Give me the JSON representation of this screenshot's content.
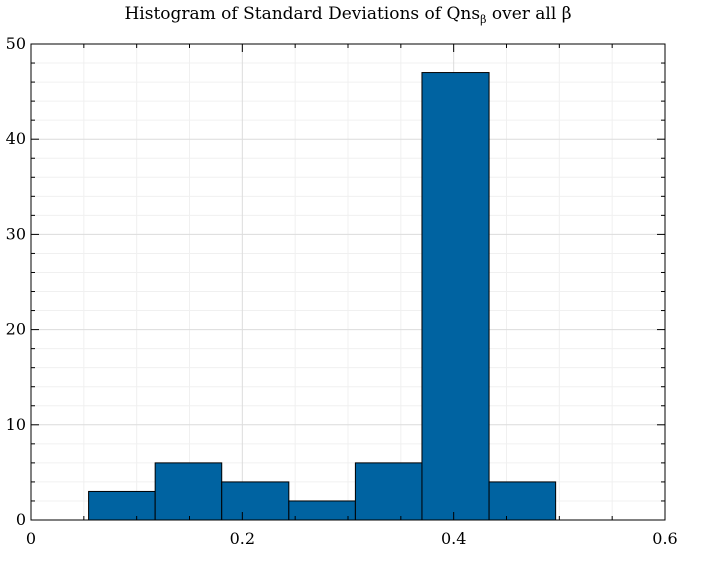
{
  "chart_data": {
    "type": "bar",
    "title": {
      "prefix": "Histogram of Standard Deviations of Qns",
      "subscript": "β",
      "suffix": " over all β"
    },
    "xlabel": "",
    "ylabel": "",
    "xlim": [
      0,
      0.6
    ],
    "ylim": [
      0,
      50
    ],
    "x_ticks": [
      0,
      0.2,
      0.4,
      0.6
    ],
    "x_tick_labels": [
      "0",
      "0.2",
      "0.4",
      "0.6"
    ],
    "y_ticks": [
      0,
      10,
      20,
      30,
      40,
      50
    ],
    "y_tick_labels": [
      "0",
      "10",
      "20",
      "30",
      "40",
      "50"
    ],
    "bins": [
      {
        "start": 0.0545,
        "end": 0.1175,
        "count": 3
      },
      {
        "start": 0.1175,
        "end": 0.1805,
        "count": 6
      },
      {
        "start": 0.1805,
        "end": 0.244,
        "count": 4
      },
      {
        "start": 0.244,
        "end": 0.307,
        "count": 2
      },
      {
        "start": 0.307,
        "end": 0.37,
        "count": 6
      },
      {
        "start": 0.37,
        "end": 0.4335,
        "count": 47
      },
      {
        "start": 0.4335,
        "end": 0.4965,
        "count": 4
      }
    ],
    "grid": true,
    "minor_grid": true,
    "bar_color": "#0063a1",
    "edge_color": "#000000"
  }
}
